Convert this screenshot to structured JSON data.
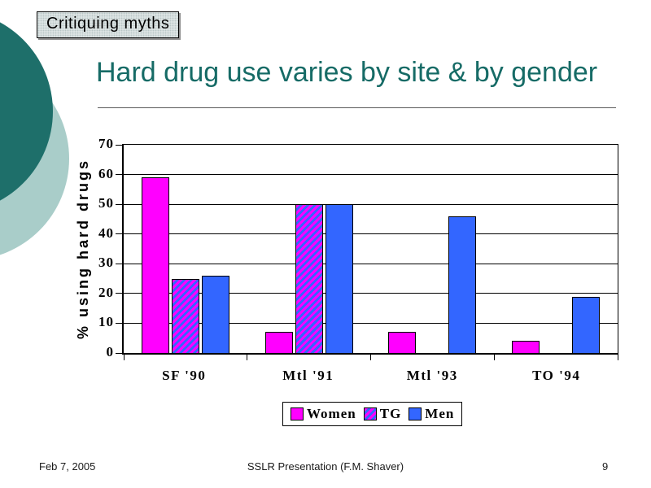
{
  "slide": {
    "tag": "Critiquing myths",
    "title": "Hard drug use varies by site & by gender",
    "accent_color": "#166b66",
    "decor_dark_circle_color": "#1e6f6a",
    "decor_light_circle_color": "#a9cdc9"
  },
  "footer": {
    "date": "Feb 7, 2005",
    "center": "SSLR Presentation (F.M. Shaver)",
    "page": "9"
  },
  "chart_data": {
    "type": "bar",
    "title": "",
    "xlabel": "",
    "ylabel": "% using hard drugs",
    "ylim": [
      0,
      70
    ],
    "ytick_step": 10,
    "grid": true,
    "legend_position": "bottom",
    "categories": [
      "SF '90",
      "Mtl '91",
      "Mtl '93",
      "TO '94"
    ],
    "series": [
      {
        "name": "Women",
        "color": "#ff00ff",
        "values": [
          59,
          7,
          7,
          4
        ]
      },
      {
        "name": "TG",
        "color": "#3366ff",
        "stripe_color": "#ff00ff",
        "values": [
          25,
          50,
          null,
          null
        ]
      },
      {
        "name": "Men",
        "color": "#3366ff",
        "values": [
          26,
          50,
          46,
          19
        ]
      }
    ]
  }
}
